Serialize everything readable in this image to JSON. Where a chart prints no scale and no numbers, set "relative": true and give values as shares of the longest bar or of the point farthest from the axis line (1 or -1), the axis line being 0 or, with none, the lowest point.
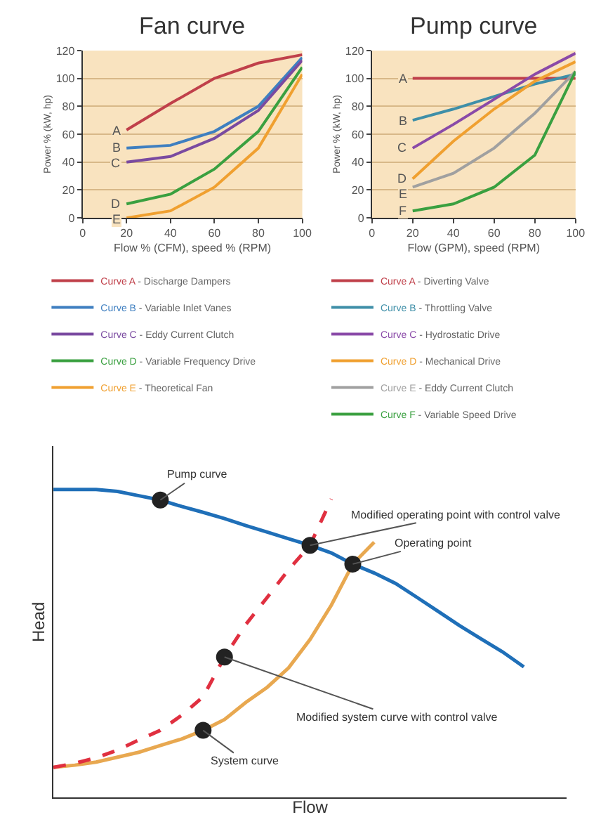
{
  "chart_data": [
    {
      "type": "line",
      "title": "Fan curve",
      "xlabel": "Flow % (CFM), speed % (RPM)",
      "ylabel": "Power % (kW, hp)",
      "x": [
        20,
        40,
        60,
        80,
        100
      ],
      "xlim": [
        0,
        100
      ],
      "xticks": [
        0,
        20,
        40,
        60,
        80,
        100
      ],
      "ylim": [
        0,
        120
      ],
      "yticks": [
        0,
        20,
        40,
        60,
        80,
        100,
        120
      ],
      "grid": "y",
      "legend": "bottom",
      "marker": "none",
      "series": [
        {
          "name": "Curve A - Discharge Dampers",
          "color": "#c0404a",
          "values": [
            63,
            82,
            100,
            111,
            117
          ]
        },
        {
          "name": "Curve B - Variable Inlet Vanes",
          "color": "#3f7fc0",
          "values": [
            50,
            52,
            62,
            80,
            115
          ]
        },
        {
          "name": "Curve C - Eddy Current Clutch",
          "color": "#7a4aa0",
          "values": [
            40,
            44,
            57,
            77,
            113
          ]
        },
        {
          "name": "Curve D - Variable Frequency Drive",
          "color": "#3aa040",
          "values": [
            10,
            17,
            35,
            62,
            108
          ]
        },
        {
          "name": "Curve E - Theoretical Fan",
          "color": "#f0a030",
          "values": [
            0,
            5,
            22,
            50,
            103
          ]
        }
      ],
      "annotations": [
        "A",
        "B",
        "C",
        "D",
        "E"
      ]
    },
    {
      "type": "line",
      "title": "Pump curve",
      "xlabel": "Flow (GPM), speed (RPM)",
      "ylabel": "Power % (kW, hp)",
      "x": [
        20,
        40,
        60,
        80,
        100
      ],
      "xlim": [
        0,
        100
      ],
      "xticks": [
        0,
        20,
        40,
        60,
        80,
        100
      ],
      "ylim": [
        0,
        120
      ],
      "yticks": [
        0,
        20,
        40,
        60,
        80,
        100,
        120
      ],
      "grid": "y",
      "legend": "bottom",
      "marker": "none",
      "series": [
        {
          "name": "Curve A - Diverting Valve",
          "color": "#c0404a",
          "values": [
            100,
            100,
            100,
            100,
            100
          ]
        },
        {
          "name": "Curve B - Throttling Valve",
          "color": "#3f8fa8",
          "values": [
            70,
            78,
            87,
            96,
            103
          ]
        },
        {
          "name": "Curve C - Hydrostatic Drive",
          "color": "#8a4aa8",
          "values": [
            50,
            67,
            85,
            103,
            118
          ]
        },
        {
          "name": "Curve D - Mechanical Drive",
          "color": "#f0a030",
          "values": [
            28,
            55,
            78,
            98,
            112
          ]
        },
        {
          "name": "Curve E - Eddy Current Clutch",
          "color": "#a0a0a0",
          "values": [
            22,
            32,
            50,
            75,
            105
          ]
        },
        {
          "name": "Curve F - Variable Speed Drive",
          "color": "#3aa040",
          "values": [
            5,
            10,
            22,
            45,
            105
          ]
        }
      ],
      "annotations": [
        "A",
        "B",
        "C",
        "D",
        "E",
        "F"
      ]
    },
    {
      "type": "line",
      "relative": true,
      "xlabel": "Flow",
      "ylabel": "Head",
      "grid": false,
      "legend": false,
      "categories": [
        null,
        null,
        null,
        null,
        null,
        null,
        null,
        null,
        null,
        null,
        null,
        null,
        null,
        null,
        null,
        null,
        null,
        null,
        null,
        null,
        null,
        null,
        null,
        null,
        null
      ],
      "series": [
        {
          "color": "#1f6fb8",
          "line_style": "solid",
          "marker": "none",
          "values": [
            1.0,
            1.0,
            1.0,
            0.994,
            0.98,
            0.966,
            0.945,
            0.926,
            0.906,
            0.883,
            0.862,
            0.84,
            0.819,
            0.794,
            0.758,
            0.729,
            0.695,
            0.65,
            0.604,
            0.558,
            0.515,
            0.473,
            0.424,
            null,
            null
          ]
        },
        {
          "color": "#e8a850",
          "line_style": "solid",
          "marker": "none",
          "values": [
            0.098,
            0.105,
            0.115,
            0.131,
            0.147,
            0.169,
            0.19,
            0.218,
            0.253,
            0.309,
            0.358,
            0.421,
            0.513,
            0.625,
            0.758,
            0.829,
            null,
            null,
            null,
            null,
            null,
            null,
            null,
            null,
            null
          ]
        },
        {
          "color": "#e03040",
          "line_style": "dashed",
          "marker": "none",
          "values": [
            0.098,
            0.111,
            0.129,
            0.154,
            0.187,
            0.218,
            0.267,
            0.327,
            0.456,
            0.562,
            0.65,
            0.74,
            0.819,
            0.969,
            null,
            null,
            null,
            null,
            null,
            null,
            null,
            null,
            null,
            null,
            null
          ]
        }
      ],
      "annotations": [
        "Pump curve",
        "Modified operating point with control valve",
        "Operating point",
        "Modified system curve with control valve",
        "System curve"
      ]
    }
  ]
}
